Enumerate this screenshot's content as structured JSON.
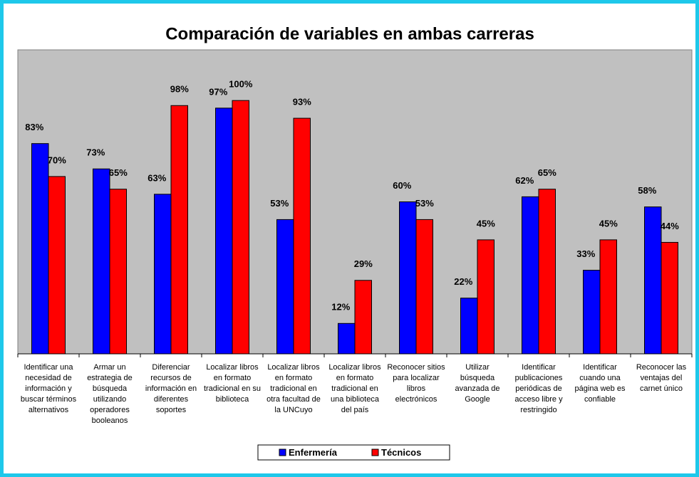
{
  "chart_data": {
    "type": "bar",
    "title": "Comparación de variables en ambas carreras",
    "categories": [
      "Identificar una necesidad de información y buscar términos alternativos",
      "Armar un estrategia de búsqueda utilizando operadores booleanos",
      "Diferenciar recursos de información en diferentes soportes",
      "Localizar libros en formato tradicional en su biblioteca",
      "Localizar libros en formato tradicional en otra facultad de la UNCuyo",
      "Localizar libros en formato tradicional en una biblioteca del país",
      "Reconocer sitios para localizar libros electrónicos",
      "Utilizar búsqueda avanzada de Google",
      "Identificar publicaciones periódicas de acceso libre y restringido",
      "Identificar cuando una página web es confiable",
      "Reconocer las ventajas del carnet único"
    ],
    "series": [
      {
        "name": "Enfermería",
        "color": "#0000ff",
        "values": [
          83,
          73,
          63,
          97,
          53,
          12,
          60,
          22,
          62,
          33,
          58
        ],
        "value_labels": [
          "83%",
          "73%",
          "63%",
          "97%",
          "53%",
          "12%",
          "60%",
          "22%",
          "62%",
          "33%",
          "58%"
        ]
      },
      {
        "name": "Técnicos",
        "color": "#ff0000",
        "values": [
          70,
          65,
          98,
          100,
          93,
          29,
          53,
          45,
          65,
          45,
          44
        ],
        "value_labels": [
          "70%",
          "65%",
          "98%",
          "100%",
          "93%",
          "29%",
          "53%",
          "45%",
          "65%",
          "45%",
          "44%"
        ]
      }
    ],
    "ylim": [
      0,
      120
    ],
    "plot_background": "#c0c0c0",
    "legend": "bottom"
  }
}
